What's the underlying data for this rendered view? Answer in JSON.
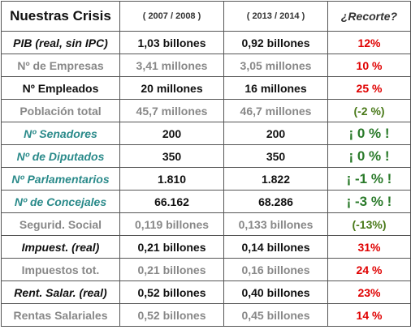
{
  "table": {
    "header": [
      "Nuestras Crisis",
      "( 2007 / 2008 )",
      "( 2013 / 2014 )",
      "¿Recorte?"
    ],
    "rows": [
      [
        "PIB (real, sin IPC)",
        "1,03 billones",
        "0,92 billones",
        "12%"
      ],
      [
        "Nº de Empresas",
        "3,41 millones",
        "3,05 millones",
        "10 %"
      ],
      [
        "Nº Empleados",
        "20 millones",
        "16 millones",
        "25 %"
      ],
      [
        "Población total",
        "45,7 millones",
        "46,7 millones",
        "(-2 %)"
      ],
      [
        "Nº Senadores",
        "200",
        "200",
        "¡ 0 % !"
      ],
      [
        "Nº de Diputados",
        "350",
        "350",
        "¡ 0 % !"
      ],
      [
        "Nº Parlamentarios",
        "1.810",
        "1.822",
        "¡ -1 % !"
      ],
      [
        "Nº de Concejales",
        "66.162",
        "68.286",
        "¡ -3 % !"
      ],
      [
        "Segurid. Social",
        "0,119 billones",
        "0,133 billones",
        "(-13%)"
      ],
      [
        "Impuest. (real)",
        "0,21 billones",
        "0,14 billones",
        "31%"
      ],
      [
        "Impuestos tot.",
        "0,21 billones",
        "0,16 billones",
        "24 %"
      ],
      [
        "Rent. Salar. (real)",
        "0,52 billones",
        "0,40 billones",
        "23%"
      ],
      [
        "Rentas Salariales",
        "0,52 billones",
        "0,45 billones",
        "14 %"
      ]
    ]
  }
}
